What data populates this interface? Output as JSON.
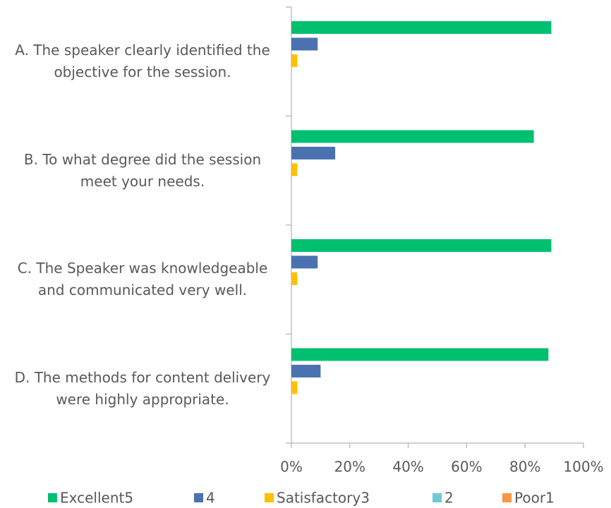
{
  "chart_data": {
    "type": "bar",
    "orientation": "horizontal",
    "categories": [
      "A. The speaker clearly identified the objective for the session.",
      "B. To what degree did the session meet your needs.",
      "C. The Speaker was knowledgeable and communicated very well.",
      "D. The methods for content delivery were highly appropriate."
    ],
    "series": [
      {
        "name": "Excellent5",
        "color": "#00c070",
        "values": [
          89,
          83,
          89,
          88
        ]
      },
      {
        "name": "4",
        "color": "#4a72b0",
        "values": [
          9,
          15,
          9,
          10
        ]
      },
      {
        "name": "Satisfactory3",
        "color": "#ffc000",
        "values": [
          2,
          2,
          2,
          2
        ]
      },
      {
        "name": "2",
        "color": "#70c8d0",
        "values": [
          0,
          0,
          0,
          0
        ]
      },
      {
        "name": "Poor1",
        "color": "#f79646",
        "values": [
          0,
          0,
          0,
          0
        ]
      }
    ],
    "xlim": [
      0,
      100
    ],
    "xticks": [
      {
        "value": 0,
        "label": "0%"
      },
      {
        "value": 20,
        "label": "20%"
      },
      {
        "value": 40,
        "label": "40%"
      },
      {
        "value": 60,
        "label": "60%"
      },
      {
        "value": 80,
        "label": "80%"
      },
      {
        "value": 100,
        "label": "100%"
      }
    ],
    "legend": "bottom"
  }
}
